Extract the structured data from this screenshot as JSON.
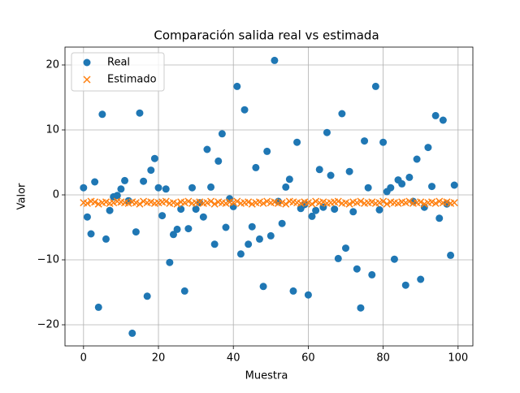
{
  "chart_data": {
    "type": "scatter",
    "title": "Comparación salida real vs estimada",
    "x_label": "Muestra",
    "y_label": "Valor",
    "x": [
      0,
      1,
      2,
      3,
      4,
      5,
      6,
      7,
      8,
      9,
      10,
      11,
      12,
      13,
      14,
      15,
      16,
      17,
      18,
      19,
      20,
      21,
      22,
      23,
      24,
      25,
      26,
      27,
      28,
      29,
      30,
      31,
      32,
      33,
      34,
      35,
      36,
      37,
      38,
      39,
      40,
      41,
      42,
      43,
      44,
      45,
      46,
      47,
      48,
      49,
      50,
      51,
      52,
      53,
      54,
      55,
      56,
      57,
      58,
      59,
      60,
      61,
      62,
      63,
      64,
      65,
      66,
      67,
      68,
      69,
      70,
      71,
      72,
      73,
      74,
      75,
      76,
      77,
      78,
      79,
      80,
      81,
      82,
      83,
      84,
      85,
      86,
      87,
      88,
      89,
      90,
      91,
      92,
      93,
      94,
      95,
      96,
      97,
      98,
      99
    ],
    "series": [
      {
        "name": "Real",
        "color": "#1f77b4",
        "marker": "circle",
        "values": [
          1.1,
          -3.4,
          -6.0,
          2.0,
          -17.3,
          12.4,
          -6.8,
          -2.4,
          -0.3,
          -0.1,
          0.9,
          2.2,
          -0.9,
          -21.3,
          -5.7,
          12.6,
          2.1,
          -15.6,
          3.8,
          5.6,
          1.1,
          -3.2,
          0.9,
          -10.4,
          -6.1,
          -5.3,
          -2.2,
          -14.8,
          -5.2,
          1.1,
          -2.2,
          -1.2,
          -3.4,
          7.0,
          1.2,
          -7.6,
          5.2,
          9.4,
          -5.0,
          -0.6,
          -1.8,
          16.7,
          -9.1,
          13.1,
          -7.6,
          -4.9,
          4.2,
          -6.8,
          -14.1,
          6.7,
          -6.3,
          20.7,
          -1.0,
          -4.4,
          1.2,
          2.4,
          -14.8,
          8.1,
          -2.1,
          -1.5,
          -15.4,
          -3.3,
          -2.4,
          3.9,
          -1.9,
          9.6,
          3.0,
          -2.2,
          -9.8,
          12.5,
          -8.2,
          3.6,
          -2.6,
          -11.4,
          -17.4,
          8.3,
          1.1,
          -12.3,
          16.7,
          -2.3,
          8.1,
          0.5,
          1.1,
          -9.9,
          2.3,
          1.7,
          -13.9,
          2.7,
          -1.0,
          5.5,
          -13.0,
          -1.9,
          7.3,
          1.3,
          12.2,
          -3.6,
          11.5,
          -1.4,
          -9.3,
          1.5
        ]
      },
      {
        "name": "Estimado",
        "color": "#ff7f0e",
        "marker": "x",
        "values": [
          -1.2,
          -1.3,
          -1.0,
          -1.1,
          -1.4,
          -1.2,
          -1.1,
          -1.3,
          -1.2,
          -1.0,
          -1.1,
          -1.2,
          -1.3,
          -1.1,
          -1.2,
          -1.4,
          -1.0,
          -1.2,
          -1.1,
          -1.3,
          -1.2,
          -1.1,
          -1.0,
          -1.3,
          -1.2,
          -1.4,
          -1.1,
          -1.2,
          -1.0,
          -1.3,
          -1.2,
          -1.1,
          -1.3,
          -1.2,
          -1.0,
          -1.4,
          -1.1,
          -1.2,
          -1.3,
          -1.1,
          -1.2,
          -1.0,
          -1.3,
          -1.2,
          -1.1,
          -1.4,
          -1.2,
          -1.1,
          -1.3,
          -1.0,
          -1.2,
          -1.1,
          -1.3,
          -1.2,
          -1.4,
          -1.0,
          -1.1,
          -1.2,
          -1.3,
          -1.1,
          -1.2,
          -1.4,
          -1.0,
          -1.2,
          -1.1,
          -1.3,
          -1.2,
          -1.1,
          -1.0,
          -1.3,
          -1.2,
          -1.4,
          -1.1,
          -1.2,
          -1.0,
          -1.3,
          -1.2,
          -1.1,
          -1.3,
          -1.2,
          -1.0,
          -1.4,
          -1.1,
          -1.2,
          -1.3,
          -1.1,
          -1.2,
          -1.0,
          -1.3,
          -1.2,
          -1.1,
          -1.4,
          -1.2,
          -1.1,
          -1.3,
          -1.0,
          -1.2,
          -1.1,
          -1.3,
          -1.2
        ]
      }
    ],
    "xlim": [
      -4.95,
      103.95
    ],
    "ylim": [
      -23.25,
      22.75
    ],
    "xticks": [
      0,
      20,
      40,
      60,
      80,
      100
    ],
    "yticks": [
      {
        "value": -20,
        "label": "−20"
      },
      {
        "value": -10,
        "label": "−10"
      },
      0,
      10,
      20
    ],
    "grid": true,
    "legend": "upper left"
  }
}
